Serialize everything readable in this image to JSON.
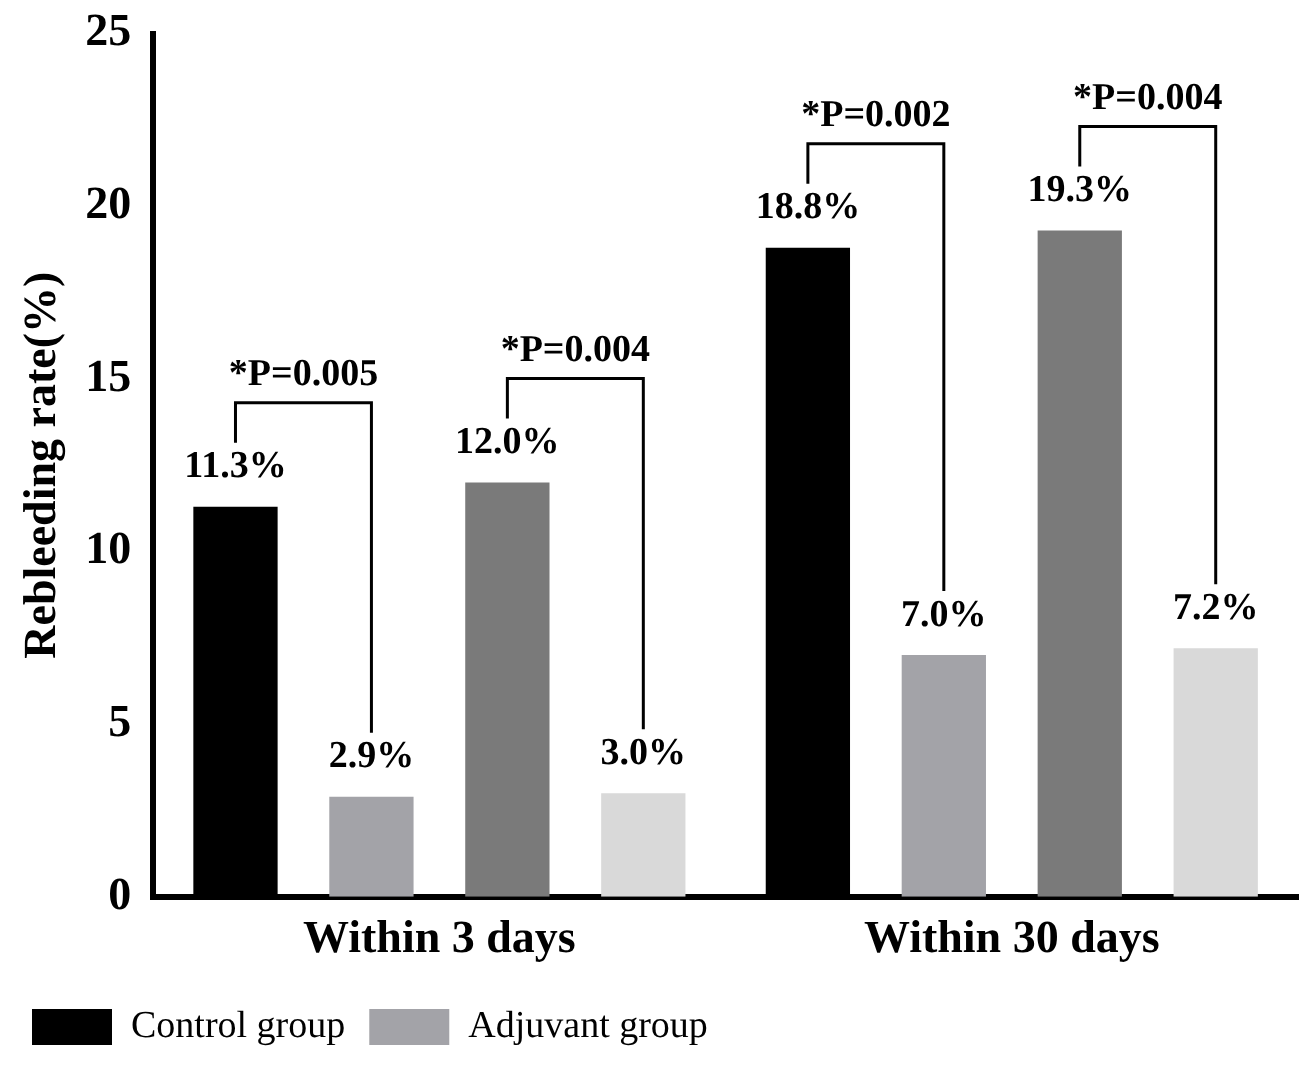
{
  "chart_data": {
    "type": "bar",
    "ylabel": "Rebleeding rate(%)",
    "categories": [
      "Within 3 days",
      "Within 30 days"
    ],
    "series": [
      {
        "name": "Control group",
        "color": "#000000",
        "values": [
          11.3,
          18.8
        ],
        "value_labels": [
          "11.3%",
          "18.8%"
        ]
      },
      {
        "name": "Adjuvant group",
        "color": "#a3a3a8",
        "values": [
          2.9,
          7.0
        ],
        "value_labels": [
          "2.9%",
          "7.0%"
        ]
      },
      {
        "color": "#7a7a7a",
        "values": [
          12.0,
          19.3
        ],
        "value_labels": [
          "12.0%",
          "19.3%"
        ]
      },
      {
        "color": "#d9d9d9",
        "values": [
          3.0,
          7.2
        ],
        "value_labels": [
          "3.0%",
          "7.2%"
        ]
      }
    ],
    "annotations": [
      "*P=0.005",
      "*P=0.004",
      "*P=0.002",
      "*P=0.004"
    ],
    "ylim": [
      0,
      25
    ],
    "yticks": [
      0,
      5,
      10,
      15,
      20,
      25
    ],
    "grid": false,
    "legend": "bottom left"
  }
}
